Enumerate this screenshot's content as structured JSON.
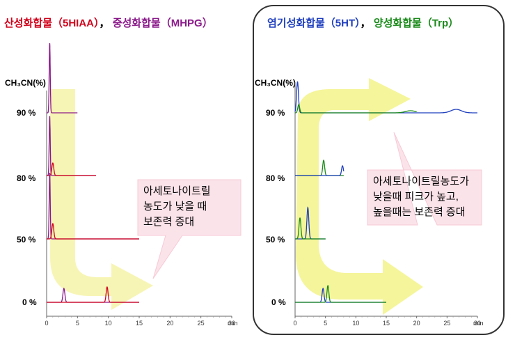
{
  "left_panel": {
    "title_a": "산성화합물（5HIAA）",
    "title_sep": "，",
    "title_b": "중성화합물（MHPG）",
    "title_a_color": "#d0021b",
    "title_b_color": "#8b1a8b",
    "ylabel": "CH₃CN(%)",
    "callout": [
      "아세토나이트릴",
      "농도가 낮을 때",
      "보존력 증대"
    ]
  },
  "right_panel": {
    "title_a": "염기성화합물（5HT）",
    "title_sep": "，",
    "title_b": "양성화합물（Trp）",
    "title_a_color": "#1f3fbf",
    "title_b_color": "#1a8a1a",
    "ylabel": "CH₃CN(%)",
    "callout": [
      "아세토나이트릴농도가",
      "낮을때 피크가 높고,",
      "높을때는 보존력 증대"
    ]
  },
  "chart_data": [
    {
      "type": "line",
      "panel": "left",
      "x_unit": "min",
      "xlim": [
        0,
        30
      ],
      "x_ticks": [
        0,
        5,
        10,
        15,
        20,
        25,
        30
      ],
      "y_levels": [
        "90 %",
        "80 %",
        "50 %",
        "0 %"
      ],
      "series": [
        {
          "level": "90 %",
          "color": "#8b1a8b",
          "peaks": [
            {
              "t": 0.5,
              "h": 1.0
            }
          ],
          "end": 5.0
        },
        {
          "level": "80 %",
          "color": "#8b1a8b",
          "peaks": [
            {
              "t": 0.5,
              "h": 0.85
            }
          ],
          "end": 8.0
        },
        {
          "level": "80 %",
          "color": "#d0021b",
          "peaks": [
            {
              "t": 1.0,
              "h": 0.18
            }
          ],
          "end": 8.0
        },
        {
          "level": "50 %",
          "color": "#8b1a8b",
          "peaks": [
            {
              "t": 0.5,
              "h": 0.95
            }
          ],
          "end": 15.0
        },
        {
          "level": "50 %",
          "color": "#d0021b",
          "peaks": [
            {
              "t": 1.0,
              "h": 0.22
            }
          ],
          "end": 15.0
        },
        {
          "level": "0 %",
          "color": "#8b1a8b",
          "peaks": [
            {
              "t": 2.8,
              "h": 0.2
            }
          ],
          "end": 15.0
        },
        {
          "level": "0 %",
          "color": "#d0021b",
          "peaks": [
            {
              "t": 9.8,
              "h": 0.22
            }
          ],
          "end": 15.0
        }
      ]
    },
    {
      "type": "line",
      "panel": "right",
      "x_unit": "min",
      "xlim": [
        0,
        30
      ],
      "x_ticks": [
        0,
        5,
        10,
        15,
        20,
        25,
        30
      ],
      "y_levels": [
        "90 %",
        "80 %",
        "50 %",
        "0 %"
      ],
      "series": [
        {
          "level": "90 %",
          "color": "#1f3fbf",
          "peaks": [
            {
              "t": 0.4,
              "h": 0.45
            },
            {
              "t": 26.5,
              "h": 0.05
            }
          ],
          "end": 30.0
        },
        {
          "level": "90 %",
          "color": "#1a8a1a",
          "peaks": [
            {
              "t": 0.6,
              "h": 0.12
            },
            {
              "t": 19.0,
              "h": 0.03
            }
          ],
          "end": 20.0
        },
        {
          "level": "80 %",
          "color": "#1a8a1a",
          "peaks": [
            {
              "t": 4.7,
              "h": 0.22
            }
          ],
          "end": 8.0
        },
        {
          "level": "80 %",
          "color": "#1f3fbf",
          "peaks": [
            {
              "t": 7.8,
              "h": 0.14
            }
          ],
          "end": 8.0
        },
        {
          "level": "50 %",
          "color": "#1f3fbf",
          "peaks": [
            {
              "t": 2.1,
              "h": 0.45
            }
          ],
          "end": 5.0
        },
        {
          "level": "50 %",
          "color": "#1a8a1a",
          "peaks": [
            {
              "t": 0.8,
              "h": 0.3
            }
          ],
          "end": 5.0
        },
        {
          "level": "0 %",
          "color": "#1f3fbf",
          "peaks": [
            {
              "t": 4.6,
              "h": 0.2
            }
          ],
          "end": 15.0
        },
        {
          "level": "0 %",
          "color": "#1a8a1a",
          "peaks": [
            {
              "t": 5.4,
              "h": 0.24
            }
          ],
          "end": 15.0
        }
      ]
    }
  ]
}
